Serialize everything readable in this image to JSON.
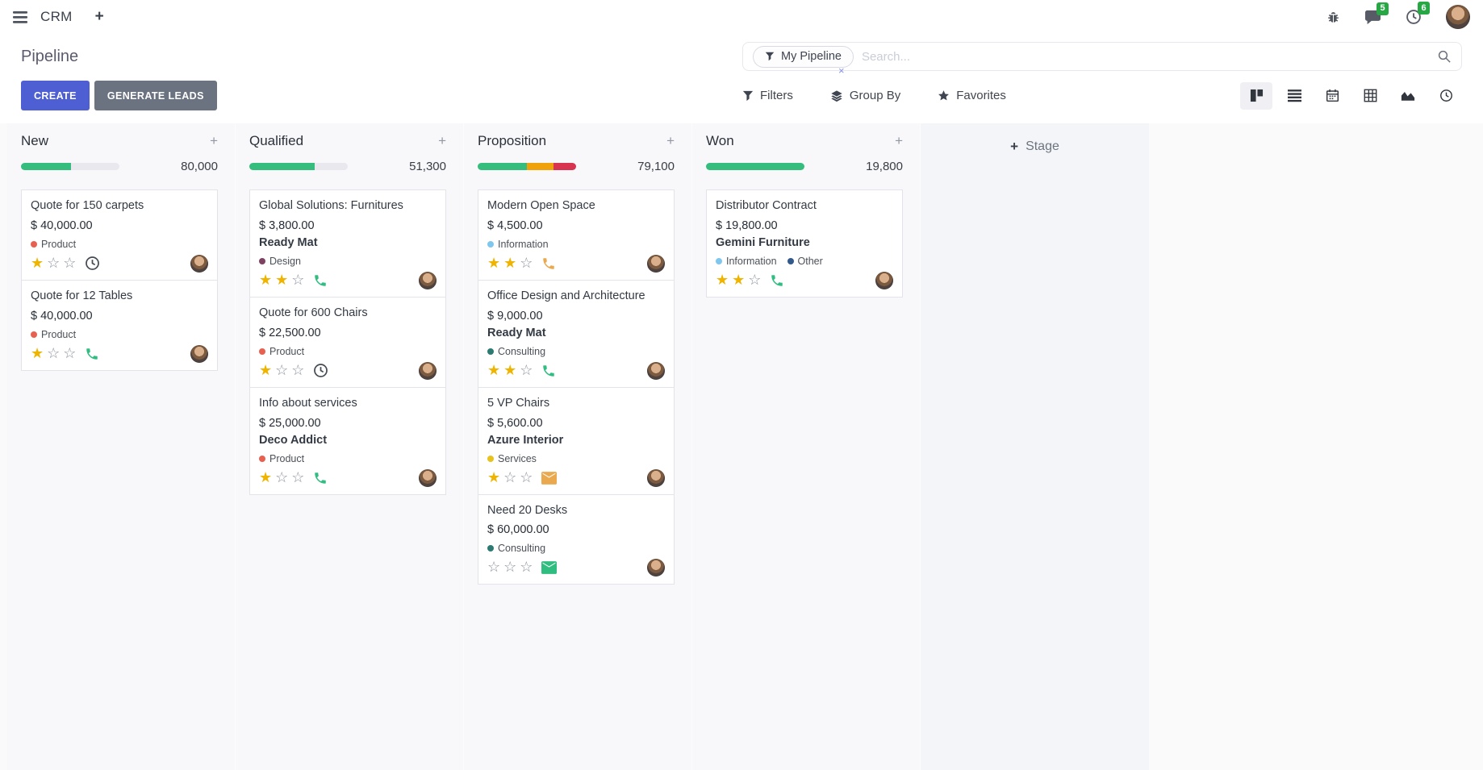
{
  "colors": {
    "primary": "#4d5fd3",
    "secondary": "#6b7280",
    "badge_green": "#28a745",
    "star_gold": "#efb400"
  },
  "glyphs": {
    "plus": "+",
    "close": "×",
    "star_filled": "★",
    "star_empty": "☆"
  },
  "icons": {
    "navbar": [
      "hamburger-icon",
      "plus-icon",
      "bug-icon",
      "messages-icon",
      "activities-icon"
    ],
    "search": [
      "filter-funnel-icon",
      "remove-facet-icon",
      "search-icon"
    ],
    "controls": [
      "filter-icon",
      "group-by-icon",
      "favorites-star-icon"
    ],
    "view_switcher": [
      "kanban-view-icon",
      "list-view-icon",
      "calendar-view-icon",
      "pivot-view-icon",
      "graph-view-icon",
      "activity-view-icon"
    ]
  },
  "navbar": {
    "app_name": "CRM",
    "messages_badge": "5",
    "activities_badge": "6"
  },
  "control": {
    "title": "Pipeline",
    "create_label": "CREATE",
    "generate_leads_label": "GENERATE LEADS",
    "search_facet": "My Pipeline",
    "search_placeholder": "Search...",
    "filters_label": "Filters",
    "group_by_label": "Group By",
    "favorites_label": "Favorites",
    "view_switcher_active": "kanban"
  },
  "board": {
    "add_stage_label": "Stage",
    "columns": [
      {
        "name": "New",
        "total": "80,000",
        "progress": [
          {
            "color": "#34bd7d",
            "pct": 51
          },
          {
            "color": "#e8e8ee",
            "pct": 49
          }
        ],
        "cards": [
          {
            "title": "Quote for 150 carpets",
            "amount": "$ 40,000.00",
            "tags": [
              {
                "label": "Product",
                "color": "#e8604f"
              }
            ],
            "stars": 1,
            "activity": {
              "icon": "clock",
              "color": "#454b54"
            }
          },
          {
            "title": "Quote for 12 Tables",
            "amount": "$ 40,000.00",
            "tags": [
              {
                "label": "Product",
                "color": "#e8604f"
              }
            ],
            "stars": 1,
            "activity": {
              "icon": "phone",
              "color": "#30bd80"
            }
          }
        ]
      },
      {
        "name": "Qualified",
        "total": "51,300",
        "progress": [
          {
            "color": "#34bd7d",
            "pct": 66
          },
          {
            "color": "#e8e8ee",
            "pct": 34
          }
        ],
        "cards": [
          {
            "title": "Global Solutions: Furnitures",
            "amount": "$ 3,800.00",
            "company": "Ready Mat",
            "tags": [
              {
                "label": "Design",
                "color": "#7d4261"
              }
            ],
            "stars": 2,
            "activity": {
              "icon": "phone",
              "color": "#30bd80"
            }
          },
          {
            "title": "Quote for 600 Chairs",
            "amount": "$ 22,500.00",
            "tags": [
              {
                "label": "Product",
                "color": "#e8604f"
              }
            ],
            "stars": 1,
            "activity": {
              "icon": "clock",
              "color": "#454b54"
            }
          },
          {
            "title": "Info about services",
            "amount": "$ 25,000.00",
            "company": "Deco Addict",
            "tags": [
              {
                "label": "Product",
                "color": "#e8604f"
              }
            ],
            "stars": 1,
            "activity": {
              "icon": "phone",
              "color": "#30bd80"
            }
          }
        ]
      },
      {
        "name": "Proposition",
        "total": "79,100",
        "progress": [
          {
            "color": "#34bd7d",
            "pct": 50
          },
          {
            "color": "#f0a20c",
            "pct": 27
          },
          {
            "color": "#d8334f",
            "pct": 23
          }
        ],
        "cards": [
          {
            "title": "Modern Open Space",
            "amount": "$ 4,500.00",
            "tags": [
              {
                "label": "Information",
                "color": "#7fc7ef"
              }
            ],
            "stars": 2,
            "activity": {
              "icon": "phone",
              "color": "#eaa94e"
            }
          },
          {
            "title": "Office Design and Architecture",
            "amount": "$ 9,000.00",
            "company": "Ready Mat",
            "tags": [
              {
                "label": "Consulting",
                "color": "#2d7a72"
              }
            ],
            "stars": 2,
            "activity": {
              "icon": "phone",
              "color": "#30bd80"
            }
          },
          {
            "title": "5 VP Chairs",
            "amount": "$ 5,600.00",
            "company": "Azure Interior",
            "tags": [
              {
                "label": "Services",
                "color": "#e8c21d"
              }
            ],
            "stars": 1,
            "activity": {
              "icon": "envelope",
              "color": "#eaa94e"
            }
          },
          {
            "title": "Need 20 Desks",
            "amount": "$ 60,000.00",
            "tags": [
              {
                "label": "Consulting",
                "color": "#2d7a72"
              }
            ],
            "stars": 0,
            "activity": {
              "icon": "envelope",
              "color": "#30bd80"
            }
          }
        ]
      },
      {
        "name": "Won",
        "total": "19,800",
        "progress": [
          {
            "color": "#34bd7d",
            "pct": 100
          }
        ],
        "cards": [
          {
            "title": "Distributor Contract",
            "amount": "$ 19,800.00",
            "company": "Gemini Furniture",
            "tags": [
              {
                "label": "Information",
                "color": "#7fc7ef"
              },
              {
                "label": "Other",
                "color": "#33588a"
              }
            ],
            "stars": 2,
            "activity": {
              "icon": "phone",
              "color": "#30bd80"
            }
          }
        ]
      }
    ]
  }
}
